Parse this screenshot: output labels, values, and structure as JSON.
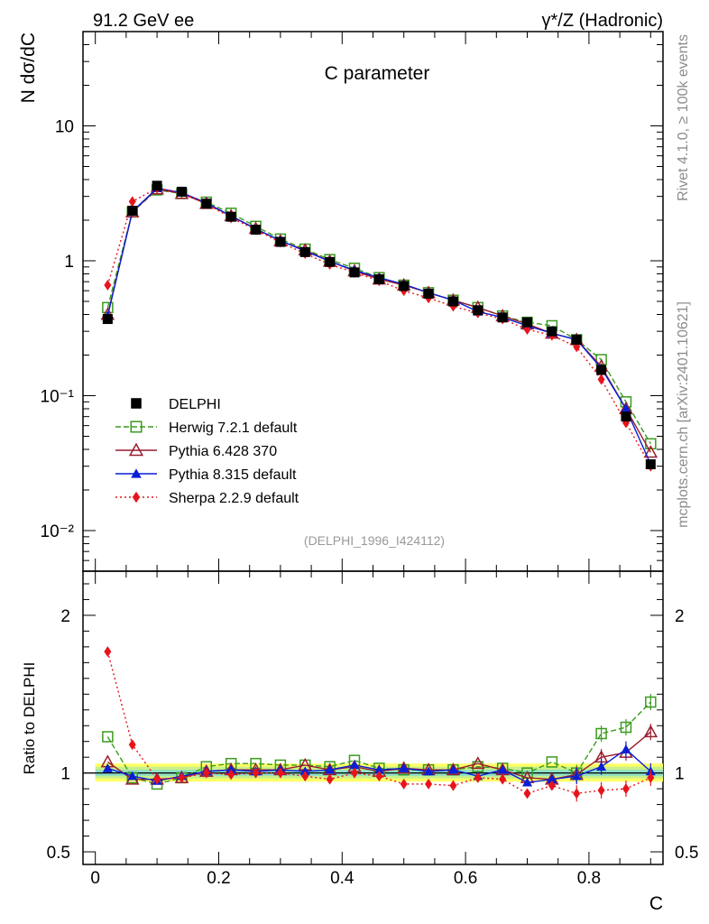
{
  "header": {
    "left": "91.2 GeV ee",
    "right": "γ*/Z (Hadronic)"
  },
  "side": {
    "rivet": "Rivet 4.1.0, ≥ 100k events",
    "mcplots": "mcplots.cern.ch [arXiv:2401.10621]"
  },
  "chart_data": {
    "type": "line",
    "title": "C parameter",
    "analysis_id": "(DELPHI_1996_I424112)",
    "xlabel": "C",
    "ylabel_main": "N  dσ/dC",
    "ylabel_ratio": "Ratio to DELPHI",
    "xlim": [
      -0.02,
      0.92
    ],
    "ylim_main_log": [
      0.005,
      50
    ],
    "ylim_ratio": [
      0.42,
      2.28
    ],
    "x_ticks": [
      "0",
      "0.2",
      "0.4",
      "0.6",
      "0.8"
    ],
    "y_ticks_main": [
      "10⁻²",
      "10⁻¹",
      "1",
      "10"
    ],
    "y_ticks_ratio": [
      "0.5",
      "1",
      "2"
    ],
    "x": [
      0.02,
      0.06,
      0.1,
      0.14,
      0.18,
      0.22,
      0.26,
      0.3,
      0.34,
      0.38,
      0.42,
      0.46,
      0.5,
      0.54,
      0.58,
      0.62,
      0.66,
      0.7,
      0.74,
      0.78,
      0.82,
      0.86,
      0.9
    ],
    "series": [
      {
        "name": "DELPHI",
        "style": "data",
        "color": "#000000",
        "values": [
          0.37,
          2.35,
          3.6,
          3.25,
          2.65,
          2.12,
          1.7,
          1.38,
          1.16,
          0.98,
          0.82,
          0.73,
          0.65,
          0.57,
          0.5,
          0.43,
          0.38,
          0.35,
          0.3,
          0.26,
          0.155,
          0.07,
          0.031
        ]
      },
      {
        "name": "Herwig 7.2.1 default",
        "style": "herwig",
        "color": "#3a9b1e",
        "values": [
          0.45,
          2.3,
          3.35,
          3.15,
          2.72,
          2.25,
          1.8,
          1.45,
          1.22,
          1.02,
          0.88,
          0.75,
          0.66,
          0.58,
          0.51,
          0.45,
          0.39,
          0.35,
          0.33,
          0.26,
          0.185,
          0.09,
          0.044
        ],
        "ratio": [
          1.23,
          0.97,
          0.93,
          0.97,
          1.04,
          1.06,
          1.06,
          1.05,
          1.05,
          1.04,
          1.08,
          1.03,
          1.02,
          1.02,
          1.02,
          1.04,
          1.03,
          1.0,
          1.07,
          1.0,
          1.25,
          1.29,
          1.45
        ]
      },
      {
        "name": "Pythia 6.428 370",
        "style": "pythia6",
        "color": "#9a1d2e",
        "values": [
          0.4,
          2.3,
          3.4,
          3.15,
          2.65,
          2.15,
          1.73,
          1.4,
          1.2,
          0.99,
          0.84,
          0.73,
          0.66,
          0.58,
          0.51,
          0.45,
          0.39,
          0.34,
          0.29,
          0.26,
          0.165,
          0.08,
          0.038
        ],
        "ratio": [
          1.07,
          0.96,
          0.96,
          0.97,
          1.01,
          1.02,
          1.02,
          1.02,
          1.05,
          1.02,
          1.04,
          1.01,
          1.03,
          1.02,
          1.02,
          1.06,
          1.02,
          0.97,
          0.96,
          0.99,
          1.1,
          1.13,
          1.26
        ]
      },
      {
        "name": "Pythia 8.315 default",
        "style": "pythia8",
        "color": "#0a1ed6",
        "values": [
          0.39,
          2.32,
          3.45,
          3.2,
          2.68,
          2.15,
          1.72,
          1.41,
          1.18,
          0.99,
          0.85,
          0.75,
          0.67,
          0.58,
          0.51,
          0.42,
          0.38,
          0.33,
          0.29,
          0.26,
          0.16,
          0.08,
          0.031
        ],
        "ratio": [
          1.03,
          0.98,
          0.95,
          0.98,
          1.01,
          1.02,
          1.01,
          1.02,
          1.01,
          1.02,
          1.05,
          1.02,
          1.03,
          1.01,
          1.02,
          0.98,
          1.02,
          0.94,
          0.96,
          0.98,
          1.04,
          1.15,
          1.01
        ]
      },
      {
        "name": "Sherpa 2.2.9 default",
        "style": "sherpa",
        "color": "#e8141c",
        "values": [
          0.66,
          2.75,
          3.45,
          3.2,
          2.65,
          2.08,
          1.7,
          1.37,
          1.13,
          0.94,
          0.82,
          0.71,
          0.6,
          0.53,
          0.46,
          0.41,
          0.37,
          0.31,
          0.28,
          0.23,
          0.132,
          0.063,
          0.03
        ],
        "ratio": [
          1.77,
          1.18,
          0.96,
          0.97,
          1.0,
          0.99,
          1.0,
          1.0,
          0.98,
          0.96,
          1.0,
          0.98,
          0.93,
          0.93,
          0.92,
          0.97,
          0.96,
          0.87,
          0.92,
          0.87,
          0.89,
          0.9,
          0.97
        ]
      }
    ]
  }
}
